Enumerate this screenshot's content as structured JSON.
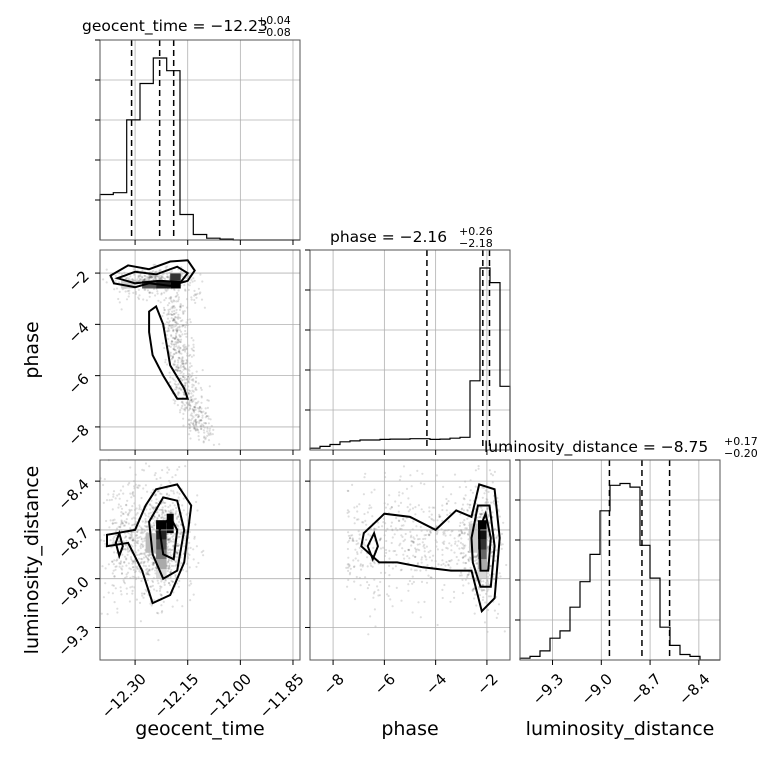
{
  "chart_data": {
    "type": "corner",
    "parameters": [
      "geocent_time",
      "phase",
      "luminosity_distance"
    ],
    "panels": [
      {
        "id": "geocent_time_hist",
        "kind": "histogram",
        "parameter": "geocent_time",
        "title": {
          "main": "geocent_time = −12.23",
          "plus": "+0.04",
          "minus": "−0.08"
        },
        "xlim": [
          -12.4,
          -11.83
        ],
        "bins": {
          "start": -12.4,
          "width": 0.038,
          "counts": [
            0.25,
            0.26,
            0.66,
            0.86,
            1.0,
            0.93,
            0.14,
            0.03,
            0.01,
            0.005,
            0.0,
            0.0,
            0.0,
            0.0,
            0.0
          ]
        },
        "quantiles": [
          -12.31,
          -12.23,
          -12.19
        ]
      },
      {
        "id": "phase_hist",
        "kind": "histogram",
        "parameter": "phase",
        "title": {
          "main": "phase = −2.16",
          "plus": "+0.26",
          "minus": "−2.18"
        },
        "xlim": [
          -8.9,
          -1.1
        ],
        "bins": {
          "start": -8.9,
          "width": 0.39,
          "counts": [
            0.01,
            0.02,
            0.03,
            0.045,
            0.05,
            0.055,
            0.055,
            0.058,
            0.06,
            0.06,
            0.062,
            0.062,
            0.058,
            0.06,
            0.065,
            0.07,
            0.38,
            1.0,
            0.92,
            0.35
          ]
        },
        "quantiles": [
          -4.34,
          -2.16,
          -1.9
        ]
      },
      {
        "id": "luminosity_distance_hist",
        "kind": "histogram",
        "parameter": "luminosity_distance",
        "title": {
          "main": "luminosity_distance = −8.75",
          "plus": "+0.17",
          "minus": "−0.20"
        },
        "xlim": [
          -9.5,
          -8.27
        ],
        "bins": {
          "start": -9.5,
          "width": 0.0615,
          "counts": [
            0.01,
            0.02,
            0.05,
            0.12,
            0.16,
            0.29,
            0.43,
            0.58,
            0.82,
            0.96,
            0.97,
            0.95,
            0.63,
            0.45,
            0.18,
            0.08,
            0.03,
            0.02,
            0.0,
            0.0
          ]
        },
        "quantiles": [
          -8.95,
          -8.75,
          -8.58
        ]
      },
      {
        "id": "geocent_time_vs_phase",
        "kind": "2d",
        "x": "geocent_time",
        "y": "phase",
        "xlim": [
          -12.4,
          -11.83
        ],
        "ylim": [
          -8.9,
          -1.1
        ]
      },
      {
        "id": "geocent_time_vs_luminosity_distance",
        "kind": "2d",
        "x": "geocent_time",
        "y": "luminosity_distance",
        "xlim": [
          -12.4,
          -11.83
        ],
        "ylim": [
          -9.5,
          -8.27
        ]
      },
      {
        "id": "phase_vs_luminosity_distance",
        "kind": "2d",
        "x": "phase",
        "y": "luminosity_distance",
        "xlim": [
          -8.9,
          -1.1
        ],
        "ylim": [
          -9.5,
          -8.27
        ]
      }
    ],
    "axes": {
      "geocent_time": {
        "label": "geocent_time",
        "ticks": [
          -12.3,
          -12.15,
          -12.0,
          -11.85
        ],
        "tick_labels": [
          "−12.30",
          "−12.15",
          "−12.00",
          "−11.85"
        ]
      },
      "phase": {
        "label": "phase",
        "ticks": [
          -8,
          -6,
          -4,
          -2
        ],
        "tick_labels": [
          "−8",
          "−6",
          "−4",
          "−2"
        ]
      },
      "luminosity_distance": {
        "label": "luminosity_distance",
        "ticks": [
          -9.3,
          -9.0,
          -8.7,
          -8.4
        ],
        "tick_labels": [
          "−9.3",
          "−9.0",
          "−8.7",
          "−8.4"
        ]
      }
    },
    "grid": true
  }
}
